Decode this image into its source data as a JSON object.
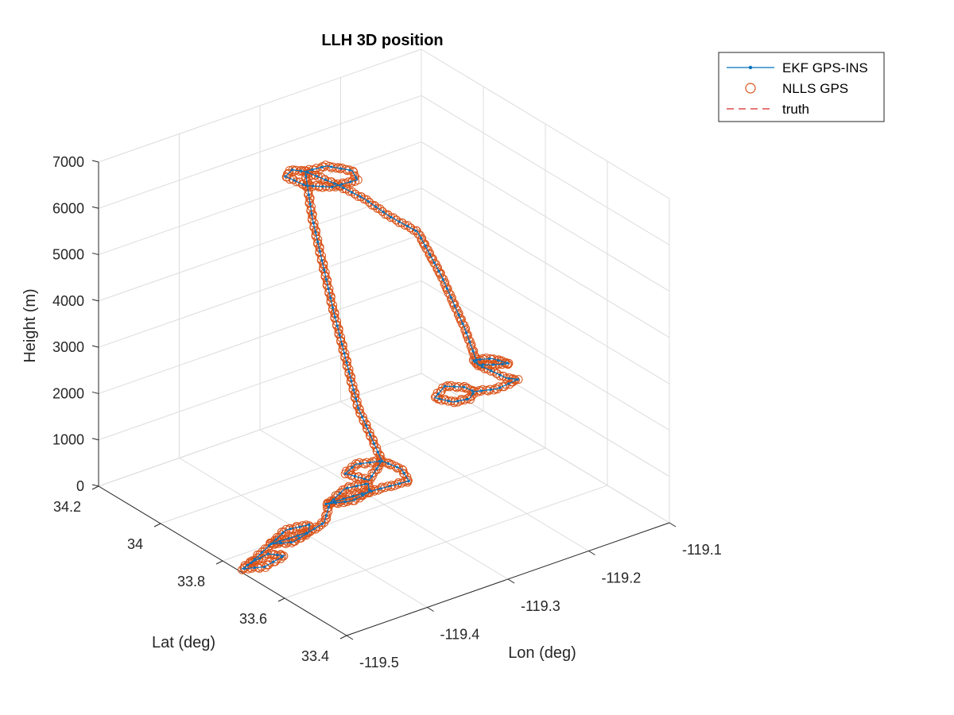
{
  "chart_data": {
    "type": "line3d",
    "title": "LLH 3D position",
    "xlabel": "Lon (deg)",
    "ylabel": "Lat (deg)",
    "zlabel": "Height (m)",
    "xlim": [
      -119.5,
      -119.1
    ],
    "ylim": [
      33.4,
      34.2
    ],
    "zlim": [
      0,
      7000
    ],
    "xticks": [
      "-119.5",
      "-119.4",
      "-119.3",
      "-119.2",
      "-119.1"
    ],
    "yticks": [
      "33.4",
      "33.6",
      "33.8",
      "34",
      "34.2"
    ],
    "zticks": [
      "0",
      "1000",
      "2000",
      "3000",
      "4000",
      "5000",
      "6000",
      "7000"
    ],
    "grid": true,
    "legend_position": "top-right",
    "colors": {
      "ekf": "#0072BD",
      "nlls": "#D95319",
      "truth": "#D62728"
    },
    "legend": [
      "EKF GPS-INS",
      "NLLS GPS",
      "truth"
    ],
    "series": [
      {
        "name": "EKF GPS-INS",
        "style": "line-with-dots",
        "path": [
          [
            -119.48,
            33.76,
            0
          ],
          [
            -119.455,
            33.77,
            0
          ],
          [
            -119.445,
            33.745,
            0
          ],
          [
            -119.475,
            33.73,
            0
          ],
          [
            -119.495,
            33.75,
            0
          ],
          [
            -119.48,
            33.76,
            0
          ],
          [
            -119.44,
            33.8,
            0
          ],
          [
            -119.41,
            33.83,
            0
          ],
          [
            -119.385,
            33.82,
            0
          ],
          [
            -119.395,
            33.795,
            0
          ],
          [
            -119.42,
            33.78,
            0
          ],
          [
            -119.44,
            33.8,
            0
          ],
          [
            -119.395,
            33.795,
            0
          ],
          [
            -119.37,
            33.81,
            0
          ],
          [
            -119.34,
            33.87,
            0
          ],
          [
            -119.31,
            33.9,
            0
          ],
          [
            -119.285,
            33.89,
            0
          ],
          [
            -119.295,
            33.86,
            0
          ],
          [
            -119.32,
            33.85,
            0
          ],
          [
            -119.345,
            33.87,
            0
          ],
          [
            -119.34,
            33.87,
            0
          ],
          [
            -119.29,
            33.86,
            0
          ],
          [
            -119.25,
            33.85,
            0
          ],
          [
            -119.24,
            33.9,
            0
          ],
          [
            -119.245,
            33.95,
            0
          ],
          [
            -119.27,
            33.97,
            0
          ],
          [
            -119.29,
            33.95,
            0
          ],
          [
            -119.28,
            33.9,
            0
          ],
          [
            -119.245,
            33.95,
            0
          ],
          [
            -119.255,
            34.0,
            1000
          ],
          [
            -119.27,
            34.04,
            3000
          ],
          [
            -119.285,
            34.07,
            5000
          ],
          [
            -119.29,
            34.08,
            6000
          ],
          [
            -119.31,
            34.07,
            6200
          ],
          [
            -119.33,
            34.04,
            6300
          ],
          [
            -119.32,
            34.0,
            6200
          ],
          [
            -119.295,
            33.98,
            6100
          ],
          [
            -119.26,
            33.99,
            6000
          ],
          [
            -119.255,
            34.02,
            6050
          ],
          [
            -119.275,
            34.05,
            6150
          ],
          [
            -119.29,
            34.08,
            6000
          ],
          [
            -119.27,
            34.03,
            5800
          ],
          [
            -119.255,
            33.98,
            5600
          ],
          [
            -119.24,
            33.94,
            5300
          ],
          [
            -119.22,
            33.9,
            5000
          ],
          [
            -119.21,
            33.85,
            4200
          ],
          [
            -119.2,
            33.8,
            3200
          ],
          [
            -119.195,
            33.77,
            2500
          ],
          [
            -119.18,
            33.76,
            2450
          ],
          [
            -119.16,
            33.76,
            2350
          ],
          [
            -119.17,
            33.79,
            2400
          ],
          [
            -119.19,
            33.8,
            2450
          ],
          [
            -119.195,
            33.77,
            2500
          ],
          [
            -119.175,
            33.73,
            2250
          ],
          [
            -119.165,
            33.72,
            2200
          ],
          [
            -119.19,
            33.72,
            2150
          ],
          [
            -119.215,
            33.73,
            2200
          ],
          [
            -119.22,
            33.75,
            2250
          ],
          [
            -119.24,
            33.76,
            2350
          ],
          [
            -119.26,
            33.74,
            2300
          ],
          [
            -119.245,
            33.72,
            2200
          ],
          [
            -119.225,
            33.72,
            2150
          ],
          [
            -119.215,
            33.73,
            2200
          ]
        ]
      },
      {
        "name": "NLLS GPS",
        "style": "open-circles"
      },
      {
        "name": "truth",
        "style": "dashed"
      }
    ]
  }
}
